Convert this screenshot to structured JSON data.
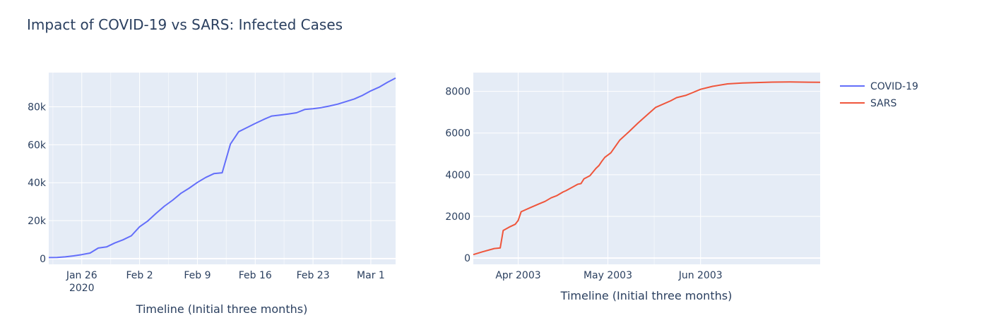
{
  "title": "Impact of COVID-19 vs SARS: Infected Cases",
  "legend": [
    {
      "label": "COVID-19",
      "color": "#636efa"
    },
    {
      "label": "SARS",
      "color": "#ef553b"
    }
  ],
  "chart_data": [
    {
      "type": "line",
      "panel": "left",
      "series_name": "COVID-19",
      "color": "#636efa",
      "xlabel": "Timeline (Initial three months)",
      "ylabel": "",
      "x_tick_labels": [
        "Jan 26",
        "Feb 2",
        "Feb 9",
        "Feb 16",
        "Feb 23",
        "Mar 1"
      ],
      "x_tick_sublabel": "2020",
      "y_tick_labels": [
        "0",
        "20k",
        "40k",
        "60k",
        "80k"
      ],
      "y_ticks": [
        0,
        20000,
        40000,
        60000,
        80000
      ],
      "xlim": [
        "2020-01-22",
        "2020-03-04"
      ],
      "ylim": [
        -3000,
        98000
      ],
      "grid": true,
      "x": [
        "2020-01-22",
        "2020-01-23",
        "2020-01-24",
        "2020-01-25",
        "2020-01-26",
        "2020-01-27",
        "2020-01-28",
        "2020-01-29",
        "2020-01-30",
        "2020-01-31",
        "2020-02-01",
        "2020-02-02",
        "2020-02-03",
        "2020-02-04",
        "2020-02-05",
        "2020-02-06",
        "2020-02-07",
        "2020-02-08",
        "2020-02-09",
        "2020-02-10",
        "2020-02-11",
        "2020-02-12",
        "2020-02-13",
        "2020-02-14",
        "2020-02-15",
        "2020-02-16",
        "2020-02-17",
        "2020-02-18",
        "2020-02-19",
        "2020-02-20",
        "2020-02-21",
        "2020-02-22",
        "2020-02-23",
        "2020-02-24",
        "2020-02-25",
        "2020-02-26",
        "2020-02-27",
        "2020-02-28",
        "2020-02-29",
        "2020-03-01",
        "2020-03-02",
        "2020-03-03",
        "2020-03-04"
      ],
      "values": [
        555,
        653,
        941,
        1438,
        2118,
        2927,
        5578,
        6166,
        8234,
        9927,
        12038,
        16787,
        19881,
        23892,
        27635,
        30794,
        34391,
        37120,
        40150,
        42762,
        44802,
        45221,
        60368,
        66885,
        69030,
        71224,
        73258,
        75136,
        75639,
        76197,
        76819,
        78572,
        78958,
        79561,
        80406,
        81388,
        82746,
        84112,
        86011,
        88369,
        90306,
        92840,
        95120
      ]
    },
    {
      "type": "line",
      "panel": "right",
      "series_name": "SARS",
      "color": "#ef553b",
      "xlabel": "Timeline (Initial three months)",
      "ylabel": "",
      "x_tick_labels": [
        "Apr 2003",
        "May 2003",
        "Jun 2003"
      ],
      "y_tick_labels": [
        "0",
        "2000",
        "4000",
        "6000",
        "8000"
      ],
      "y_ticks": [
        0,
        2000,
        4000,
        6000,
        8000
      ],
      "xlim": [
        "2003-03-17",
        "2003-07-11"
      ],
      "ylim": [
        -300,
        8900
      ],
      "grid": true,
      "x": [
        "2003-03-17",
        "2003-03-20",
        "2003-03-24",
        "2003-03-26",
        "2003-03-27",
        "2003-03-29",
        "2003-03-31",
        "2003-04-01",
        "2003-04-02",
        "2003-04-05",
        "2003-04-08",
        "2003-04-10",
        "2003-04-12",
        "2003-04-14",
        "2003-04-16",
        "2003-04-17",
        "2003-04-19",
        "2003-04-21",
        "2003-04-22",
        "2003-04-23",
        "2003-04-25",
        "2003-04-27",
        "2003-04-28",
        "2003-04-29",
        "2003-04-30",
        "2003-05-02",
        "2003-05-05",
        "2003-05-08",
        "2003-05-11",
        "2003-05-13",
        "2003-05-17",
        "2003-05-22",
        "2003-05-24",
        "2003-05-27",
        "2003-05-29",
        "2003-06-01",
        "2003-06-05",
        "2003-06-10",
        "2003-06-15",
        "2003-06-20",
        "2003-06-25",
        "2003-07-01",
        "2003-07-11"
      ],
      "values": [
        167,
        300,
        456,
        487,
        1323,
        1485,
        1622,
        1804,
        2223,
        2416,
        2601,
        2722,
        2890,
        3000,
        3170,
        3235,
        3389,
        3547,
        3574,
        3800,
        3950,
        4300,
        4439,
        4649,
        4836,
        5050,
        5663,
        6054,
        6469,
        6727,
        7233,
        7548,
        7700,
        7805,
        7919,
        8100,
        8240,
        8360,
        8402,
        8424,
        8445,
        8450,
        8432
      ]
    }
  ]
}
